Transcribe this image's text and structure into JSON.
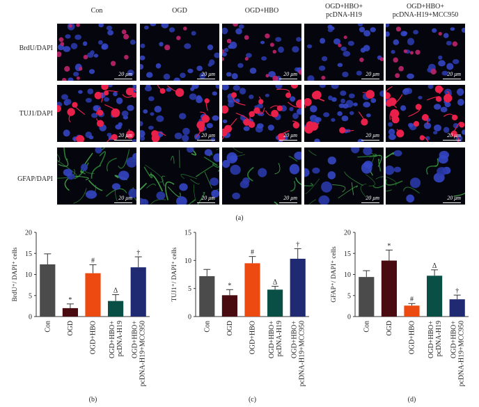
{
  "panel_a": {
    "columns": [
      "Con",
      "OGD",
      "OGD+HBO",
      "OGD+HBO+\npcDNA-H19",
      "OGD+HBO+\npcDNA-H19+MCC950"
    ],
    "rows": [
      "BrdU/DAPI",
      "TUJ1/DAPI",
      "GFAP/DAPI"
    ],
    "scale_text": "20 μm",
    "label": "(a)"
  },
  "colors": {
    "Con": "#4b4b4b",
    "OGD": "#4a0b10",
    "OGD+HBO": "#ec4a10",
    "OGD+HBO+pcDNA-H19": "#0a4f45",
    "OGD+HBO+pcDNA-H19+MCC950": "#1f2a72"
  },
  "chart_data": [
    {
      "type": "bar",
      "label": "(b)",
      "ylabel": "BrdU⁺/ DAPI⁺ cells",
      "categories": [
        "Con",
        "OGD",
        "OGD+HBO",
        "OGD+HBO+\npcDNA-H19",
        "OGD+HBO+\npcDNA-H19+MCC950"
      ],
      "values": [
        12.4,
        2.0,
        10.3,
        3.7,
        11.7
      ],
      "errors": [
        2.5,
        1.0,
        2.0,
        1.5,
        2.5
      ],
      "annotations": [
        "",
        "*",
        "#",
        "Δ",
        "†"
      ],
      "ylim": [
        0,
        20
      ],
      "yticks": [
        0,
        5,
        10,
        15,
        20
      ]
    },
    {
      "type": "bar",
      "label": "(c)",
      "ylabel": "TUJ1⁺/ DAPI⁺ cells",
      "categories": [
        "Con",
        "OGD",
        "OGD+HBO",
        "OGD+HBO+\npcDNA-H19",
        "OGD+HBO+\npcDNA-H19+MCC950"
      ],
      "values": [
        7.2,
        3.8,
        9.5,
        4.8,
        10.3
      ],
      "errors": [
        1.2,
        1.0,
        1.2,
        0.6,
        1.8
      ],
      "annotations": [
        "",
        "*",
        "#",
        "Δ",
        "†"
      ],
      "ylim": [
        0,
        15
      ],
      "yticks": [
        0,
        5,
        10,
        15
      ]
    },
    {
      "type": "bar",
      "label": "(d)",
      "ylabel": "GFAP⁺/ DAPI⁺ cells",
      "categories": [
        "Con",
        "OGD",
        "OGD+HBO",
        "OGD+HBO+\npcDNA-H19",
        "OGD+HBO+\npcDNA-H19+MCC950"
      ],
      "values": [
        9.4,
        13.3,
        2.6,
        9.7,
        4.1
      ],
      "errors": [
        1.5,
        2.5,
        0.5,
        1.4,
        1.0
      ],
      "annotations": [
        "",
        "*",
        "#",
        "Δ",
        "†"
      ],
      "ylim": [
        0,
        20
      ],
      "yticks": [
        0,
        5,
        10,
        15,
        20
      ]
    }
  ]
}
